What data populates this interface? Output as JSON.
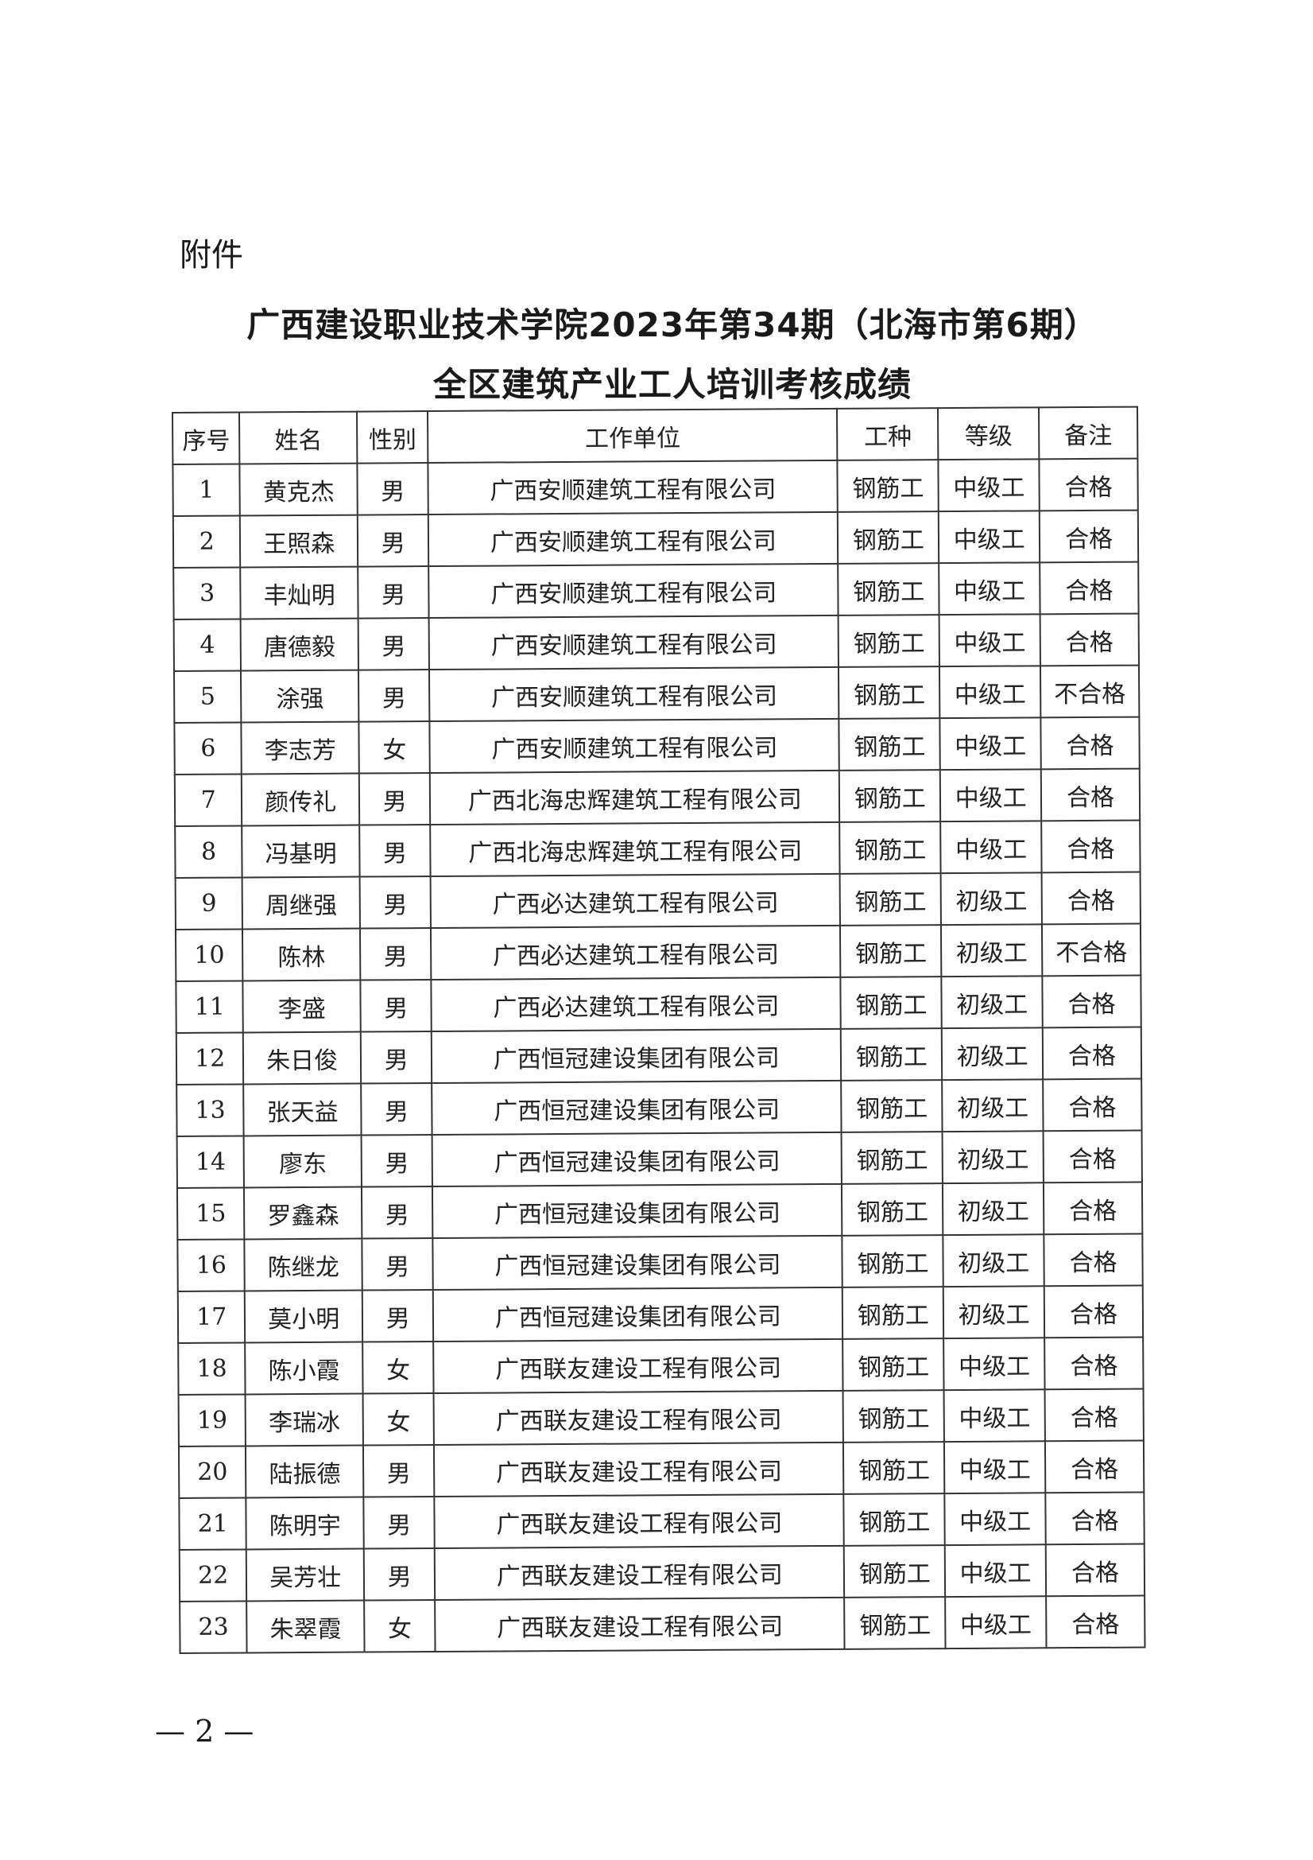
{
  "attachment_label": "附件",
  "title_line1": "广西建设职业技术学院2023年第34期（北海市第6期）",
  "title_line2": "全区建筑产业工人培训考核成绩",
  "table": {
    "headers": [
      "序号",
      "姓名",
      "性别",
      "工作单位",
      "工种",
      "等级",
      "备注"
    ],
    "rows": [
      [
        "1",
        "黄克杰",
        "男",
        "广西安顺建筑工程有限公司",
        "钢筋工",
        "中级工",
        "合格"
      ],
      [
        "2",
        "王照森",
        "男",
        "广西安顺建筑工程有限公司",
        "钢筋工",
        "中级工",
        "合格"
      ],
      [
        "3",
        "丰灿明",
        "男",
        "广西安顺建筑工程有限公司",
        "钢筋工",
        "中级工",
        "合格"
      ],
      [
        "4",
        "唐德毅",
        "男",
        "广西安顺建筑工程有限公司",
        "钢筋工",
        "中级工",
        "合格"
      ],
      [
        "5",
        "涂强",
        "男",
        "广西安顺建筑工程有限公司",
        "钢筋工",
        "中级工",
        "不合格"
      ],
      [
        "6",
        "李志芳",
        "女",
        "广西安顺建筑工程有限公司",
        "钢筋工",
        "中级工",
        "合格"
      ],
      [
        "7",
        "颜传礼",
        "男",
        "广西北海忠辉建筑工程有限公司",
        "钢筋工",
        "中级工",
        "合格"
      ],
      [
        "8",
        "冯基明",
        "男",
        "广西北海忠辉建筑工程有限公司",
        "钢筋工",
        "中级工",
        "合格"
      ],
      [
        "9",
        "周继强",
        "男",
        "广西必达建筑工程有限公司",
        "钢筋工",
        "初级工",
        "合格"
      ],
      [
        "10",
        "陈林",
        "男",
        "广西必达建筑工程有限公司",
        "钢筋工",
        "初级工",
        "不合格"
      ],
      [
        "11",
        "李盛",
        "男",
        "广西必达建筑工程有限公司",
        "钢筋工",
        "初级工",
        "合格"
      ],
      [
        "12",
        "朱日俊",
        "男",
        "广西恒冠建设集团有限公司",
        "钢筋工",
        "初级工",
        "合格"
      ],
      [
        "13",
        "张天益",
        "男",
        "广西恒冠建设集团有限公司",
        "钢筋工",
        "初级工",
        "合格"
      ],
      [
        "14",
        "廖东",
        "男",
        "广西恒冠建设集团有限公司",
        "钢筋工",
        "初级工",
        "合格"
      ],
      [
        "15",
        "罗鑫森",
        "男",
        "广西恒冠建设集团有限公司",
        "钢筋工",
        "初级工",
        "合格"
      ],
      [
        "16",
        "陈继龙",
        "男",
        "广西恒冠建设集团有限公司",
        "钢筋工",
        "初级工",
        "合格"
      ],
      [
        "17",
        "莫小明",
        "男",
        "广西恒冠建设集团有限公司",
        "钢筋工",
        "初级工",
        "合格"
      ],
      [
        "18",
        "陈小霞",
        "女",
        "广西联友建设工程有限公司",
        "钢筋工",
        "中级工",
        "合格"
      ],
      [
        "19",
        "李瑞冰",
        "女",
        "广西联友建设工程有限公司",
        "钢筋工",
        "中级工",
        "合格"
      ],
      [
        "20",
        "陆振德",
        "男",
        "广西联友建设工程有限公司",
        "钢筋工",
        "中级工",
        "合格"
      ],
      [
        "21",
        "陈明宇",
        "男",
        "广西联友建设工程有限公司",
        "钢筋工",
        "中级工",
        "合格"
      ],
      [
        "22",
        "吴芳壮",
        "男",
        "广西联友建设工程有限公司",
        "钢筋工",
        "中级工",
        "合格"
      ],
      [
        "23",
        "朱翠霞",
        "女",
        "广西联友建设工程有限公司",
        "钢筋工",
        "中级工",
        "合格"
      ]
    ]
  },
  "page_number": "— 2 —"
}
